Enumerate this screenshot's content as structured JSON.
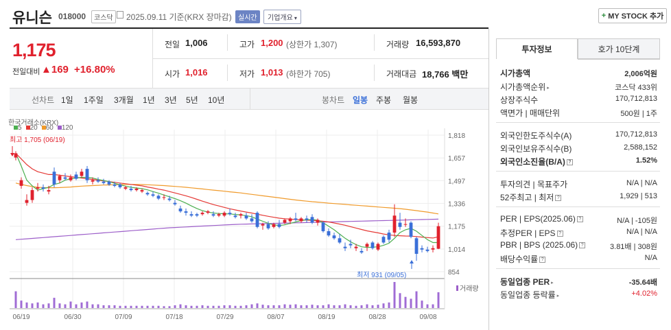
{
  "header": {
    "name": "유니슨",
    "code": "018000",
    "market": "코스닥",
    "date": "2025.09.11  기준(KRX 장마감)",
    "realtime": "실시간",
    "overview": "기업개요",
    "mystock": "MY STOCK 추가"
  },
  "price": {
    "current": "1,175",
    "change_label": "전일대비",
    "change": "169",
    "change_pct": "+16.80%"
  },
  "stats": {
    "prev_label": "전일",
    "prev": "1,006",
    "high_label": "고가",
    "high": "1,200",
    "high_limit": "(상한가 1,307)",
    "volume_label": "거래량",
    "volume": "16,593,870",
    "open_label": "시가",
    "open": "1,016",
    "low_label": "저가",
    "low": "1,013",
    "low_limit": "(하한가 705)",
    "amount_label": "거래대금",
    "amount": "18,766 백만"
  },
  "tabs": {
    "line_label": "선차트",
    "periods": [
      "1일",
      "1주일",
      "3개월",
      "1년",
      "3년",
      "5년",
      "10년"
    ],
    "candle_label": "봉차트",
    "candle_periods": [
      "일봉",
      "주봉",
      "월봉"
    ],
    "active_candle": "일봉"
  },
  "chart_labels": {
    "source": "한국거래소(KRX)",
    "ma": [
      "5",
      "20",
      "60",
      "120"
    ],
    "high_note": "최고 1,705 (06/19)",
    "low_note": "최저 931 (09/05)",
    "volume_label": "거래량"
  },
  "chart_data": {
    "type": "candlestick",
    "y_ticks": [
      "1,818",
      "1,657",
      "1,497",
      "1,336",
      "1,175",
      "1,014",
      "854"
    ],
    "ylim": [
      854,
      1818
    ],
    "x_ticks": [
      "06/19",
      "06/30",
      "07/09",
      "07/18",
      "07/29",
      "08/07",
      "08/19",
      "08/28",
      "09/08"
    ],
    "ma_colors": {
      "5": "#4caf50",
      "20": "#e53935",
      "60": "#f09a2a",
      "120": "#9c5ec9"
    },
    "candles": [
      [
        1660,
        1705,
        1640,
        1690
      ],
      [
        1460,
        1520,
        1440,
        1500
      ],
      [
        1340,
        1400,
        1320,
        1360
      ],
      [
        1360,
        1450,
        1340,
        1430
      ],
      [
        1440,
        1480,
        1420,
        1450
      ],
      [
        1450,
        1470,
        1420,
        1440
      ],
      [
        1420,
        1460,
        1400,
        1430
      ],
      [
        1560,
        1590,
        1450,
        1470
      ],
      [
        1500,
        1540,
        1480,
        1530
      ],
      [
        1520,
        1550,
        1500,
        1510
      ],
      [
        1500,
        1540,
        1490,
        1520
      ],
      [
        1540,
        1560,
        1500,
        1510
      ],
      [
        1530,
        1580,
        1520,
        1560
      ],
      [
        1580,
        1600,
        1480,
        1500
      ],
      [
        1490,
        1520,
        1470,
        1500
      ],
      [
        1500,
        1520,
        1480,
        1490
      ],
      [
        1490,
        1510,
        1470,
        1480
      ],
      [
        1490,
        1500,
        1460,
        1470
      ],
      [
        1470,
        1490,
        1450,
        1460
      ],
      [
        1470,
        1480,
        1440,
        1450
      ],
      [
        1440,
        1460,
        1430,
        1450
      ],
      [
        1440,
        1460,
        1420,
        1430
      ],
      [
        1430,
        1450,
        1420,
        1440
      ],
      [
        1420,
        1440,
        1410,
        1430
      ],
      [
        1410,
        1420,
        1390,
        1400
      ],
      [
        1400,
        1420,
        1380,
        1390
      ],
      [
        1390,
        1400,
        1360,
        1370
      ],
      [
        1380,
        1400,
        1360,
        1380
      ],
      [
        1370,
        1390,
        1350,
        1360
      ],
      [
        1340,
        1360,
        1320,
        1330
      ],
      [
        1300,
        1320,
        1270,
        1280
      ],
      [
        1280,
        1300,
        1250,
        1270
      ],
      [
        1260,
        1280,
        1240,
        1250
      ],
      [
        1260,
        1270,
        1240,
        1250
      ],
      [
        1260,
        1280,
        1250,
        1270
      ],
      [
        1270,
        1290,
        1260,
        1280
      ],
      [
        1260,
        1280,
        1240,
        1250
      ],
      [
        1250,
        1270,
        1240,
        1260
      ],
      [
        1250,
        1280,
        1240,
        1270
      ],
      [
        1270,
        1300,
        1250,
        1260
      ],
      [
        1250,
        1270,
        1230,
        1240
      ],
      [
        1250,
        1270,
        1230,
        1260
      ],
      [
        1250,
        1270,
        1220,
        1230
      ],
      [
        1230,
        1260,
        1200,
        1210
      ],
      [
        1270,
        1280,
        1160,
        1170
      ],
      [
        1180,
        1200,
        1150,
        1190
      ],
      [
        1190,
        1210,
        1150,
        1160
      ],
      [
        1170,
        1200,
        1160,
        1190
      ],
      [
        1190,
        1220,
        1160,
        1170
      ],
      [
        1200,
        1230,
        1190,
        1220
      ],
      [
        1210,
        1240,
        1190,
        1230
      ],
      [
        1230,
        1270,
        1210,
        1220
      ],
      [
        1210,
        1240,
        1200,
        1230
      ],
      [
        1230,
        1250,
        1200,
        1220
      ],
      [
        1240,
        1260,
        1190,
        1200
      ],
      [
        1200,
        1230,
        1180,
        1220
      ],
      [
        1200,
        1210,
        1130,
        1140
      ],
      [
        1140,
        1160,
        1100,
        1110
      ],
      [
        1110,
        1130,
        1080,
        1090
      ],
      [
        1090,
        1120,
        1050,
        1060
      ],
      [
        1030,
        1060,
        1000,
        1020
      ],
      [
        1050,
        1080,
        1020,
        1040
      ],
      [
        1020,
        1050,
        1000,
        1030
      ],
      [
        1000,
        1020,
        980,
        990
      ],
      [
        1030,
        1060,
        1000,
        1050
      ],
      [
        1060,
        1070,
        1010,
        1020
      ],
      [
        1010,
        1060,
        1000,
        1050
      ],
      [
        1100,
        1110,
        1050,
        1060
      ],
      [
        1130,
        1150,
        1060,
        1080
      ],
      [
        1130,
        1330,
        1100,
        1250
      ],
      [
        1200,
        1270,
        1150,
        1170
      ],
      [
        1190,
        1230,
        1170,
        1190
      ],
      [
        1200,
        1210,
        1090,
        1100
      ],
      [
        1090,
        1100,
        931,
        980
      ],
      [
        1020,
        1040,
        990,
        1010
      ],
      [
        1010,
        1030,
        990,
        1000
      ],
      [
        1010,
        1040,
        990,
        1020
      ],
      [
        1016,
        1200,
        1013,
        1175
      ]
    ],
    "ma5": [
      1690,
      1600,
      1500,
      1460,
      1430,
      1440,
      1450,
      1470,
      1480,
      1500,
      1510,
      1515,
      1520,
      1520,
      1515,
      1505,
      1498,
      1490,
      1478,
      1468,
      1458,
      1450,
      1445,
      1440,
      1432,
      1420,
      1408,
      1395,
      1383,
      1370,
      1355,
      1338,
      1318,
      1300,
      1285,
      1275,
      1268,
      1265,
      1263,
      1262,
      1258,
      1255,
      1250,
      1242,
      1225,
      1210,
      1195,
      1185,
      1180,
      1185,
      1195,
      1205,
      1215,
      1220,
      1222,
      1218,
      1200,
      1175,
      1150,
      1120,
      1090,
      1065,
      1045,
      1030,
      1025,
      1027,
      1030,
      1040,
      1055,
      1090,
      1130,
      1150,
      1160,
      1140,
      1110,
      1080,
      1060,
      1060
    ],
    "ma20": [
      1690,
      1650,
      1610,
      1580,
      1560,
      1550,
      1540,
      1540,
      1535,
      1530,
      1525,
      1520,
      1515,
      1510,
      1505,
      1500,
      1495,
      1490,
      1485,
      1480,
      1475,
      1470,
      1465,
      1460,
      1452,
      1445,
      1437,
      1430,
      1420,
      1410,
      1400,
      1390,
      1378,
      1365,
      1352,
      1340,
      1328,
      1318,
      1308,
      1298,
      1290,
      1282,
      1275,
      1268,
      1260,
      1252,
      1245,
      1238,
      1232,
      1228,
      1225,
      1222,
      1220,
      1218,
      1216,
      1214,
      1210,
      1205,
      1198,
      1190,
      1182,
      1172,
      1162,
      1152,
      1142,
      1135,
      1128,
      1120,
      1114,
      1110,
      1108,
      1106,
      1105,
      1102,
      1098,
      1095,
      1092,
      1100
    ],
    "ma60": [
      1480,
      1470,
      1462,
      1455,
      1450,
      1448,
      1447,
      1447,
      1448,
      1450,
      1452,
      1455,
      1458,
      1460,
      1462,
      1464,
      1466,
      1467,
      1468,
      1469,
      1470,
      1470,
      1470,
      1469,
      1468,
      1466,
      1464,
      1462,
      1459,
      1456,
      1453,
      1450,
      1446,
      1442,
      1438,
      1434,
      1430,
      1426,
      1422,
      1418,
      1414,
      1410,
      1405,
      1400,
      1395,
      1390,
      1385,
      1380,
      1375,
      1370,
      1365,
      1360,
      1356,
      1352,
      1348,
      1345,
      1342,
      1338,
      1335,
      1332,
      1329,
      1326,
      1323,
      1320,
      1317,
      1314,
      1311,
      1308,
      1305,
      1302,
      1299,
      1295,
      1290,
      1285,
      1280,
      1275,
      1268,
      1262
    ],
    "ma120": [
      1080,
      1083,
      1086,
      1089,
      1092,
      1095,
      1098,
      1101,
      1104,
      1107,
      1110,
      1113,
      1116,
      1119,
      1122,
      1125,
      1128,
      1131,
      1134,
      1137,
      1140,
      1143,
      1146,
      1149,
      1152,
      1155,
      1158,
      1161,
      1164,
      1166,
      1168,
      1170,
      1172,
      1174,
      1176,
      1178,
      1180,
      1182,
      1184,
      1186,
      1188,
      1189,
      1190,
      1191,
      1192,
      1193,
      1194,
      1195,
      1196,
      1197,
      1198,
      1199,
      1200,
      1201,
      1202,
      1203,
      1204,
      1205,
      1206,
      1207,
      1208,
      1209,
      1210,
      1211,
      1212,
      1213,
      1214,
      1215,
      1216,
      1217,
      1218,
      1219,
      1220,
      1221,
      1222,
      1223,
      1224,
      1225
    ],
    "volume": [
      90,
      40,
      30,
      25,
      30,
      20,
      25,
      55,
      25,
      20,
      35,
      20,
      30,
      35,
      20,
      20,
      15,
      15,
      15,
      12,
      12,
      12,
      12,
      12,
      12,
      12,
      12,
      10,
      10,
      15,
      20,
      15,
      12,
      12,
      15,
      12,
      12,
      12,
      15,
      15,
      12,
      12,
      15,
      20,
      25,
      18,
      15,
      15,
      15,
      20,
      18,
      20,
      15,
      15,
      18,
      15,
      15,
      20,
      15,
      15,
      20,
      15,
      12,
      15,
      20,
      15,
      18,
      25,
      30,
      140,
      80,
      60,
      50,
      90,
      40,
      20,
      20,
      85
    ]
  },
  "invest": {
    "tab1": "투자정보",
    "tab2": "호가 10단계",
    "rows": [
      {
        "label": "시가총액",
        "value": "2,006억원",
        "bold": true
      },
      {
        "label": "시가총액순위",
        "value": "코스닥 433위",
        "tri": true
      },
      {
        "label": "상장주식수",
        "value": "170,712,813"
      },
      {
        "label": "액면가 | 매매단위",
        "value": "500원 | 1주"
      },
      {
        "label": "외국인한도주식수(A)",
        "value": "170,712,813"
      },
      {
        "label": "외국인보유주식수(B)",
        "value": "2,588,152"
      },
      {
        "label": "외국인소진율(B/A)",
        "value": "1.52%",
        "bold": true,
        "q": true
      },
      {
        "label": "투자의견 | 목표주가",
        "value": "N/A | N/A"
      },
      {
        "label": "52주최고 | 최저",
        "value": "1,929 | 513",
        "q": true
      },
      {
        "label": "PER | EPS(2025.06)",
        "value": "N/A | -105원",
        "q": true
      },
      {
        "label": "추정PER | EPS",
        "value": "N/A | N/A",
        "q": true
      },
      {
        "label": "PBR | BPS (2025.06)",
        "value": "3.81배 | 308원",
        "q": true
      },
      {
        "label": "배당수익률",
        "value": "N/A",
        "q": true
      },
      {
        "label": "동일업종 PER",
        "value": "-35.64배",
        "bold": true,
        "tri": true
      },
      {
        "label": "동일업종 등락률",
        "value": "+4.02%",
        "red": true,
        "tri": true
      }
    ]
  }
}
